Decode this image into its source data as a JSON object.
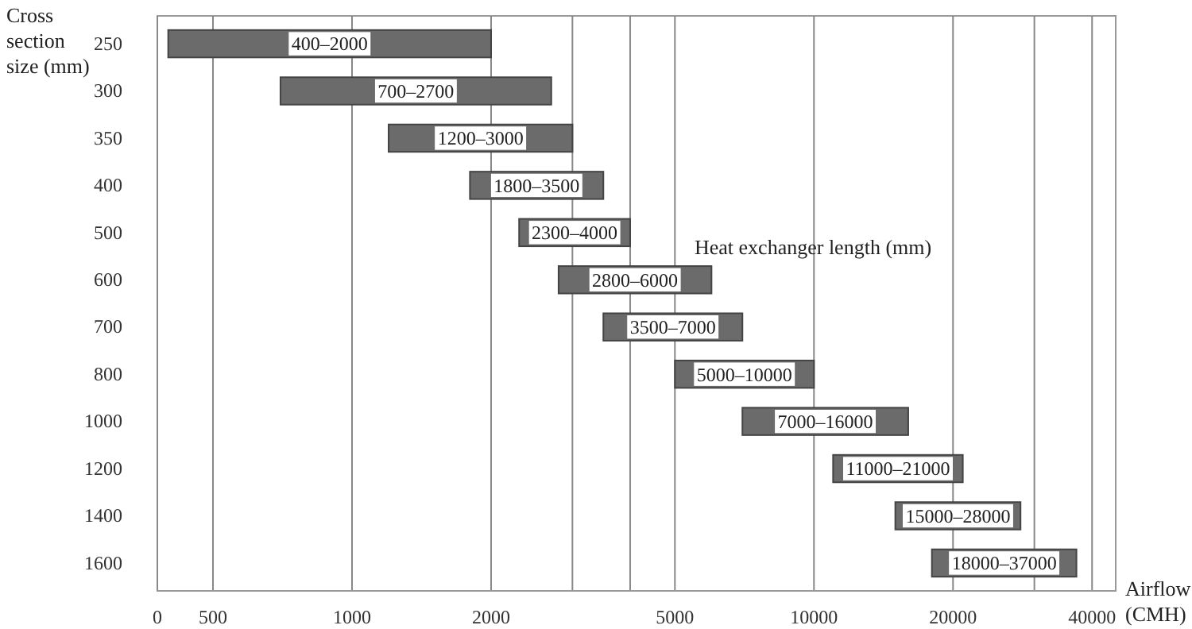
{
  "chart_data": {
    "type": "bar",
    "orientation": "horizontal",
    "log": "x",
    "ylabel": "Cross section size (mm)",
    "xlabel": "Airflow (CMH)",
    "annotations": [
      "Heat exchanger length (mm)"
    ],
    "categories": [
      "250",
      "300",
      "350",
      "400",
      "500",
      "600",
      "700",
      "800",
      "1000",
      "1200",
      "1400",
      "1600"
    ],
    "base": [
      400,
      700,
      1200,
      1800,
      2300,
      2800,
      3500,
      5000,
      7000,
      11000,
      15000,
      18000
    ],
    "values": [
      1600,
      2000,
      1800,
      1700,
      1700,
      3200,
      3500,
      5000,
      9000,
      10000,
      13000,
      19000
    ],
    "value_labels": [
      "400–2000",
      "700–2700",
      "1200–3000",
      "1800–3500",
      "2300–4000",
      "2800–6000",
      "3500–7000",
      "5000–10000",
      "7000–16000",
      "11000–21000",
      "15000–28000",
      "18000–37000"
    ],
    "color": "#6b6b6b",
    "xlim": [
      0,
      45000
    ],
    "xticks": [
      0,
      500,
      1000,
      2000,
      {
        "value": 3000,
        "label": null
      },
      {
        "value": 4000,
        "label": null
      },
      5000,
      10000,
      20000,
      {
        "value": 30000,
        "label": null
      },
      40000
    ],
    "grid": "x"
  }
}
